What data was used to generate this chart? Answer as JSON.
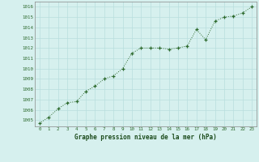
{
  "x": [
    0,
    1,
    2,
    3,
    4,
    5,
    6,
    7,
    8,
    9,
    10,
    11,
    12,
    13,
    14,
    15,
    16,
    17,
    18,
    19,
    20,
    21,
    22,
    23
  ],
  "y": [
    1004.7,
    1005.3,
    1006.1,
    1006.7,
    1006.8,
    1007.8,
    1008.3,
    1009.0,
    1009.3,
    1010.0,
    1011.5,
    1012.0,
    1012.0,
    1012.0,
    1011.9,
    1012.0,
    1012.2,
    1013.8,
    1012.8,
    1014.6,
    1015.0,
    1015.1,
    1015.4,
    1016.0
  ],
  "line_color": "#2d6a2d",
  "marker": "+",
  "marker_color": "#2d6a2d",
  "bg_color": "#d6f0ee",
  "grid_color": "#b8dede",
  "xlabel": "Graphe pression niveau de la mer (hPa)",
  "xlabel_color": "#1a4a1a",
  "ylabel_ticks": [
    1005,
    1006,
    1007,
    1008,
    1009,
    1010,
    1011,
    1012,
    1013,
    1014,
    1015,
    1016
  ],
  "xlim": [
    -0.5,
    23.5
  ],
  "ylim": [
    1004.4,
    1016.5
  ],
  "xtick_labels": [
    "0",
    "1",
    "2",
    "3",
    "4",
    "5",
    "6",
    "7",
    "8",
    "9",
    "10",
    "11",
    "12",
    "13",
    "14",
    "15",
    "16",
    "17",
    "18",
    "19",
    "20",
    "21",
    "22",
    "23"
  ],
  "tick_color": "#2d6a2d",
  "axes_color": "#2d6a2d",
  "spine_color": "#888888"
}
